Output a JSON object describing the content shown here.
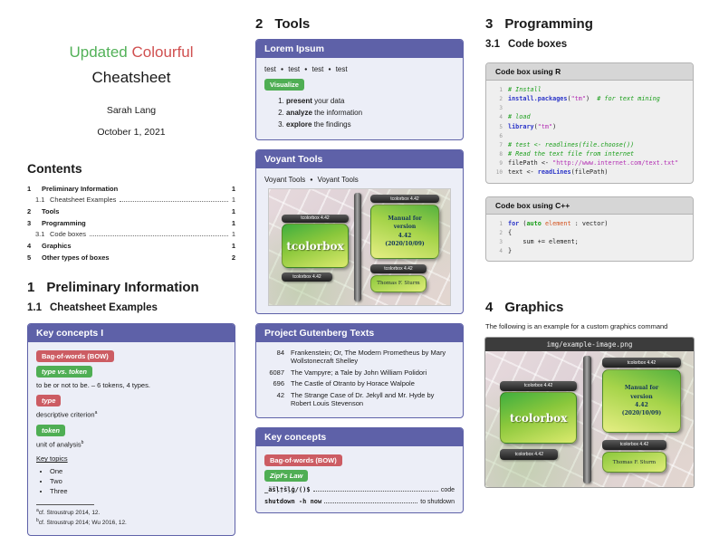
{
  "colors": {
    "accent": "#5e61a8",
    "badge-red": "#cc5c63",
    "badge-green": "#4fae54",
    "title-green": "#52b158",
    "title-red": "#d05050"
  },
  "titlepage": {
    "title_green": "Updated",
    "title_red": "Colourful",
    "title_black": "Cheatsheet",
    "author": "Sarah Lang",
    "date": "October 1, 2021"
  },
  "contents": {
    "heading": "Contents",
    "entries": [
      {
        "num": "1",
        "label": "Preliminary Information",
        "page": "1"
      },
      {
        "num": "1.1",
        "label": "Cheatsheet Examples",
        "page": "1"
      },
      {
        "num": "2",
        "label": "Tools",
        "page": "1"
      },
      {
        "num": "3",
        "label": "Programming",
        "page": "1"
      },
      {
        "num": "3.1",
        "label": "Code boxes",
        "page": "1"
      },
      {
        "num": "4",
        "label": "Graphics",
        "page": "1"
      },
      {
        "num": "5",
        "label": "Other types of boxes",
        "page": "2"
      }
    ]
  },
  "sections": {
    "s1": {
      "num": "1",
      "title": "Preliminary Information"
    },
    "s11": {
      "num": "1.1",
      "title": "Cheatsheet Examples"
    },
    "s2": {
      "num": "2",
      "title": "Tools"
    },
    "s3": {
      "num": "3",
      "title": "Programming"
    },
    "s31": {
      "num": "3.1",
      "title": "Code boxes"
    },
    "s4": {
      "num": "4",
      "title": "Graphics"
    }
  },
  "key_concepts_1": {
    "title": "Key concepts I",
    "badge_bow": "Bag-of-words (BOW)",
    "badge_type_token": "type vs. token",
    "type_token_example": "to be or not to be. – 6 tokens, 4 types.",
    "badge_type": "type",
    "type_def": "descriptive criterion",
    "type_def_fn": "a",
    "badge_token": "token",
    "token_def": "unit of analysis",
    "token_def_fn": "b",
    "key_topics_label": "Key topics",
    "topics": [
      "One",
      "Two",
      "Three"
    ],
    "footnote_a_marker": "a",
    "footnote_a": "cf. Stroustrup 2014, 12.",
    "footnote_b_marker": "b",
    "footnote_b": "cf. Stroustrup 2014; Wu 2016, 12."
  },
  "lorem_box": {
    "title": "Lorem Ipsum",
    "test_items": [
      "test",
      "test",
      "test",
      "test"
    ],
    "badge_visualize": "Visualize",
    "steps": [
      {
        "bold": "present",
        "rest": " your data"
      },
      {
        "bold": "analyze",
        "rest": " the information"
      },
      {
        "bold": "explore",
        "rest": " the findings"
      }
    ]
  },
  "voyant_box": {
    "title": "Voyant Tools",
    "items": [
      "Voyant Tools",
      "Voyant Tools"
    ]
  },
  "poster": {
    "badge": "tcolorbox 4.42",
    "main_text": "tcolorbox",
    "manual_lines": [
      "Manual for",
      "version",
      "4.42",
      "(2020/10/09)"
    ],
    "author": "Thomas F. Sturm"
  },
  "gutenberg_box": {
    "title": "Project Gutenberg Texts",
    "rows": [
      {
        "id": "84",
        "title": "Frankenstein; Or, The Modern Prometheus by Mary Wollstonecraft Shelley"
      },
      {
        "id": "6087",
        "title": "The Vampyre; a Tale by John William Polidori"
      },
      {
        "id": "696",
        "title": "The Castle of Otranto by Horace Walpole"
      },
      {
        "id": "42",
        "title": "The Strange Case of Dr. Jekyll and Mr. Hyde by Robert Louis Stevenson"
      }
    ]
  },
  "key_concepts_2": {
    "title": "Key concepts",
    "badge_bow": "Bag-of-words (BOW)",
    "badge_zipf": "Zipf's Law",
    "code_entries": [
      {
        "term": "_äšļ†šļģ/()$",
        "desc": "code"
      },
      {
        "term": "shutdown -h now",
        "desc": "to shutdown"
      }
    ]
  },
  "code_r": {
    "title": "Code box using R",
    "lines": [
      {
        "n": "1",
        "segs": [
          {
            "c": "com",
            "t": "# Install"
          }
        ]
      },
      {
        "n": "2",
        "segs": [
          {
            "c": "fn",
            "t": "install.packages"
          },
          {
            "c": "pl",
            "t": "("
          },
          {
            "c": "str",
            "t": "\"tm\""
          },
          {
            "c": "pl",
            "t": ")  "
          },
          {
            "c": "com",
            "t": "# for text mining"
          }
        ]
      },
      {
        "n": "3",
        "segs": []
      },
      {
        "n": "4",
        "segs": [
          {
            "c": "com",
            "t": "# load"
          }
        ]
      },
      {
        "n": "5",
        "segs": [
          {
            "c": "fn",
            "t": "library"
          },
          {
            "c": "pl",
            "t": "("
          },
          {
            "c": "str",
            "t": "\"tm\""
          },
          {
            "c": "pl",
            "t": ")"
          }
        ]
      },
      {
        "n": "6",
        "segs": []
      },
      {
        "n": "7",
        "segs": [
          {
            "c": "com",
            "t": "# test <- readlines(file.choose())"
          }
        ]
      },
      {
        "n": "8",
        "segs": [
          {
            "c": "com",
            "t": "# Read the text file from internet"
          }
        ]
      },
      {
        "n": "9",
        "segs": [
          {
            "c": "pl",
            "t": "filePath <- "
          },
          {
            "c": "str",
            "t": "\"http://www.internet.com/text.txt\""
          }
        ]
      },
      {
        "n": "10",
        "segs": [
          {
            "c": "pl",
            "t": "text <- "
          },
          {
            "c": "fn",
            "t": "readLines"
          },
          {
            "c": "pl",
            "t": "(filePath)"
          }
        ]
      }
    ]
  },
  "code_cpp": {
    "title": "Code box using C++",
    "lines": [
      {
        "n": "1",
        "segs": [
          {
            "c": "kw",
            "t": "for"
          },
          {
            "c": "pl",
            "t": " ("
          },
          {
            "c": "kw2",
            "t": "auto"
          },
          {
            "c": "pl",
            "t": " "
          },
          {
            "c": "var",
            "t": "element"
          },
          {
            "c": "pl",
            "t": " : vector)"
          }
        ]
      },
      {
        "n": "2",
        "segs": [
          {
            "c": "pl",
            "t": "{"
          }
        ]
      },
      {
        "n": "3",
        "segs": [
          {
            "c": "pl",
            "t": "    sum += element;"
          }
        ]
      },
      {
        "n": "4",
        "segs": [
          {
            "c": "pl",
            "t": "}"
          }
        ]
      }
    ]
  },
  "graphics": {
    "caption": "The following is an example for a custom graphics command",
    "image_label": "img/example-image.png"
  }
}
